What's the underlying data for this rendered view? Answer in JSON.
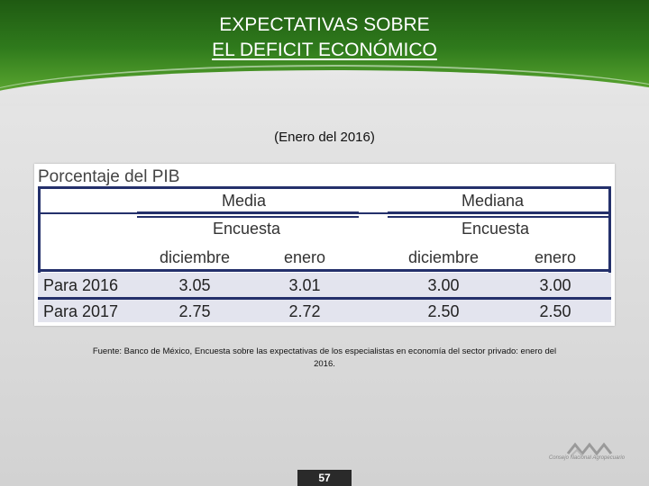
{
  "header": {
    "title_line1": "EXPECTATIVAS SOBRE",
    "title_line2": "EL DEFICIT ECONÓMICO"
  },
  "subtitle": "(Enero del 2016)",
  "table": {
    "caption": "Porcentaje del PIB",
    "groups": [
      {
        "label": "Media",
        "sub": "Encuesta"
      },
      {
        "label": "Mediana",
        "sub": "Encuesta"
      }
    ],
    "columns": [
      "diciembre",
      "enero",
      "diciembre",
      "enero"
    ],
    "rows": [
      {
        "label": "Para 2016",
        "values": [
          "3.05",
          "3.01",
          "3.00",
          "3.00"
        ]
      },
      {
        "label": "Para 2017",
        "values": [
          "2.75",
          "2.72",
          "2.50",
          "2.50"
        ]
      }
    ],
    "colors": {
      "rule": "#24306b",
      "row_band": "#e3e4ee"
    }
  },
  "source": "Fuente: Banco de México, Encuesta sobre las expectativas de los especialistas en economía del sector privado: enero del 2016.",
  "footer": {
    "page_number": "57",
    "logo_icon": "cna-mountains-logo",
    "logo_text": "Consejo Nacional Agropecuario"
  },
  "theme": {
    "header_green": "#2f7a1c"
  }
}
